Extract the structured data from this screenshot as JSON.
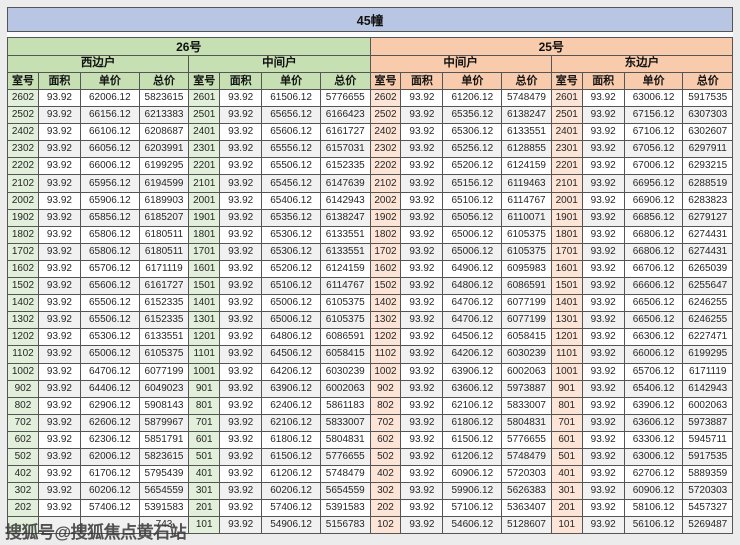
{
  "title": "45幢",
  "watermark": {
    "text": "搜狐号@搜狐焦点黄石站"
  },
  "colors": {
    "outer_bg": "#ececec",
    "title_bg": "#b9c6e3",
    "green_header": "#c6e0b4",
    "green_room": "#e2efda",
    "orange_header": "#f8cbad",
    "orange_room": "#fce4d6",
    "alt_row": "#f1f1f1",
    "border": "#555555"
  },
  "table": {
    "row_count": 26,
    "buildings": [
      {
        "name": "26号",
        "theme": "green",
        "units": [
          {
            "name": "西边户",
            "columns": [
              "室号",
              "面积",
              "单价",
              "总价"
            ],
            "rows": [
              [
                "2602",
                "93.92",
                "62006.12",
                "5823615"
              ],
              [
                "2502",
                "93.92",
                "66156.12",
                "6213383"
              ],
              [
                "2402",
                "93.92",
                "66106.12",
                "6208687"
              ],
              [
                "2302",
                "93.92",
                "66056.12",
                "6203991"
              ],
              [
                "2202",
                "93.92",
                "66006.12",
                "6199295"
              ],
              [
                "2102",
                "93.92",
                "65956.12",
                "6194599"
              ],
              [
                "2002",
                "93.92",
                "65906.12",
                "6189903"
              ],
              [
                "1902",
                "93.92",
                "65856.12",
                "6185207"
              ],
              [
                "1802",
                "93.92",
                "65806.12",
                "6180511"
              ],
              [
                "1702",
                "93.92",
                "65806.12",
                "6180511"
              ],
              [
                "1602",
                "93.92",
                "65706.12",
                "6171119"
              ],
              [
                "1502",
                "93.92",
                "65606.12",
                "6161727"
              ],
              [
                "1402",
                "93.92",
                "65506.12",
                "6152335"
              ],
              [
                "1302",
                "93.92",
                "65506.12",
                "6152335"
              ],
              [
                "1202",
                "93.92",
                "65306.12",
                "6133551"
              ],
              [
                "1102",
                "93.92",
                "65006.12",
                "6105375"
              ],
              [
                "1002",
                "93.92",
                "64706.12",
                "6077199"
              ],
              [
                "902",
                "93.92",
                "64406.12",
                "6049023"
              ],
              [
                "802",
                "93.92",
                "62906.12",
                "5908143"
              ],
              [
                "702",
                "93.92",
                "62606.12",
                "5879967"
              ],
              [
                "602",
                "93.92",
                "62306.12",
                "5851791"
              ],
              [
                "502",
                "93.92",
                "62006.12",
                "5823615"
              ],
              [
                "402",
                "93.92",
                "61706.12",
                "5795439"
              ],
              [
                "302",
                "93.92",
                "60206.12",
                "5654559"
              ],
              [
                "202",
                "93.92",
                "57406.12",
                "5391583"
              ],
              [
                "",
                "",
                "",
                "743"
              ]
            ]
          },
          {
            "name": "中间户",
            "columns": [
              "室号",
              "面积",
              "单价",
              "总价"
            ],
            "rows": [
              [
                "2601",
                "93.92",
                "61506.12",
                "5776655"
              ],
              [
                "2501",
                "93.92",
                "65656.12",
                "6166423"
              ],
              [
                "2401",
                "93.92",
                "65606.12",
                "6161727"
              ],
              [
                "2301",
                "93.92",
                "65556.12",
                "6157031"
              ],
              [
                "2201",
                "93.92",
                "65506.12",
                "6152335"
              ],
              [
                "2101",
                "93.92",
                "65456.12",
                "6147639"
              ],
              [
                "2001",
                "93.92",
                "65406.12",
                "6142943"
              ],
              [
                "1901",
                "93.92",
                "65356.12",
                "6138247"
              ],
              [
                "1801",
                "93.92",
                "65306.12",
                "6133551"
              ],
              [
                "1701",
                "93.92",
                "65306.12",
                "6133551"
              ],
              [
                "1601",
                "93.92",
                "65206.12",
                "6124159"
              ],
              [
                "1501",
                "93.92",
                "65106.12",
                "6114767"
              ],
              [
                "1401",
                "93.92",
                "65006.12",
                "6105375"
              ],
              [
                "1301",
                "93.92",
                "65006.12",
                "6105375"
              ],
              [
                "1201",
                "93.92",
                "64806.12",
                "6086591"
              ],
              [
                "1101",
                "93.92",
                "64506.12",
                "6058415"
              ],
              [
                "1001",
                "93.92",
                "64206.12",
                "6030239"
              ],
              [
                "901",
                "93.92",
                "63906.12",
                "6002063"
              ],
              [
                "801",
                "93.92",
                "62406.12",
                "5861183"
              ],
              [
                "701",
                "93.92",
                "62106.12",
                "5833007"
              ],
              [
                "601",
                "93.92",
                "61806.12",
                "5804831"
              ],
              [
                "501",
                "93.92",
                "61506.12",
                "5776655"
              ],
              [
                "401",
                "93.92",
                "61206.12",
                "5748479"
              ],
              [
                "301",
                "93.92",
                "60206.12",
                "5654559"
              ],
              [
                "201",
                "93.92",
                "57406.12",
                "5391583"
              ],
              [
                "101",
                "93.92",
                "54906.12",
                "5156783"
              ]
            ]
          }
        ]
      },
      {
        "name": "25号",
        "theme": "orange",
        "units": [
          {
            "name": "中间户",
            "columns": [
              "室号",
              "面积",
              "单价",
              "总价"
            ],
            "rows": [
              [
                "2602",
                "93.92",
                "61206.12",
                "5748479"
              ],
              [
                "2502",
                "93.92",
                "65356.12",
                "6138247"
              ],
              [
                "2402",
                "93.92",
                "65306.12",
                "6133551"
              ],
              [
                "2302",
                "93.92",
                "65256.12",
                "6128855"
              ],
              [
                "2202",
                "93.92",
                "65206.12",
                "6124159"
              ],
              [
                "2102",
                "93.92",
                "65156.12",
                "6119463"
              ],
              [
                "2002",
                "93.92",
                "65106.12",
                "6114767"
              ],
              [
                "1902",
                "93.92",
                "65056.12",
                "6110071"
              ],
              [
                "1802",
                "93.92",
                "65006.12",
                "6105375"
              ],
              [
                "1702",
                "93.92",
                "65006.12",
                "6105375"
              ],
              [
                "1602",
                "93.92",
                "64906.12",
                "6095983"
              ],
              [
                "1502",
                "93.92",
                "64806.12",
                "6086591"
              ],
              [
                "1402",
                "93.92",
                "64706.12",
                "6077199"
              ],
              [
                "1302",
                "93.92",
                "64706.12",
                "6077199"
              ],
              [
                "1202",
                "93.92",
                "64506.12",
                "6058415"
              ],
              [
                "1102",
                "93.92",
                "64206.12",
                "6030239"
              ],
              [
                "1002",
                "93.92",
                "63906.12",
                "6002063"
              ],
              [
                "902",
                "93.92",
                "63606.12",
                "5973887"
              ],
              [
                "802",
                "93.92",
                "62106.12",
                "5833007"
              ],
              [
                "702",
                "93.92",
                "61806.12",
                "5804831"
              ],
              [
                "602",
                "93.92",
                "61506.12",
                "5776655"
              ],
              [
                "502",
                "93.92",
                "61206.12",
                "5748479"
              ],
              [
                "402",
                "93.92",
                "60906.12",
                "5720303"
              ],
              [
                "302",
                "93.92",
                "59906.12",
                "5626383"
              ],
              [
                "202",
                "93.92",
                "57106.12",
                "5363407"
              ],
              [
                "102",
                "93.92",
                "54606.12",
                "5128607"
              ]
            ]
          },
          {
            "name": "东边户",
            "columns": [
              "室号",
              "面积",
              "单价",
              "总价"
            ],
            "rows": [
              [
                "2601",
                "93.92",
                "63006.12",
                "5917535"
              ],
              [
                "2501",
                "93.92",
                "67156.12",
                "6307303"
              ],
              [
                "2401",
                "93.92",
                "67106.12",
                "6302607"
              ],
              [
                "2301",
                "93.92",
                "67056.12",
                "6297911"
              ],
              [
                "2201",
                "93.92",
                "67006.12",
                "6293215"
              ],
              [
                "2101",
                "93.92",
                "66956.12",
                "6288519"
              ],
              [
                "2001",
                "93.92",
                "66906.12",
                "6283823"
              ],
              [
                "1901",
                "93.92",
                "66856.12",
                "6279127"
              ],
              [
                "1801",
                "93.92",
                "66806.12",
                "6274431"
              ],
              [
                "1701",
                "93.92",
                "66806.12",
                "6274431"
              ],
              [
                "1601",
                "93.92",
                "66706.12",
                "6265039"
              ],
              [
                "1501",
                "93.92",
                "66606.12",
                "6255647"
              ],
              [
                "1401",
                "93.92",
                "66506.12",
                "6246255"
              ],
              [
                "1301",
                "93.92",
                "66506.12",
                "6246255"
              ],
              [
                "1201",
                "93.92",
                "66306.12",
                "6227471"
              ],
              [
                "1101",
                "93.92",
                "66006.12",
                "6199295"
              ],
              [
                "1001",
                "93.92",
                "65706.12",
                "6171119"
              ],
              [
                "901",
                "93.92",
                "65406.12",
                "6142943"
              ],
              [
                "801",
                "93.92",
                "63906.12",
                "6002063"
              ],
              [
                "701",
                "93.92",
                "63606.12",
                "5973887"
              ],
              [
                "601",
                "93.92",
                "63306.12",
                "5945711"
              ],
              [
                "501",
                "93.92",
                "63006.12",
                "5917535"
              ],
              [
                "401",
                "93.92",
                "62706.12",
                "5889359"
              ],
              [
                "301",
                "93.92",
                "60906.12",
                "5720303"
              ],
              [
                "201",
                "93.92",
                "58106.12",
                "5457327"
              ],
              [
                "101",
                "93.92",
                "56106.12",
                "5269487"
              ]
            ]
          }
        ]
      }
    ]
  }
}
